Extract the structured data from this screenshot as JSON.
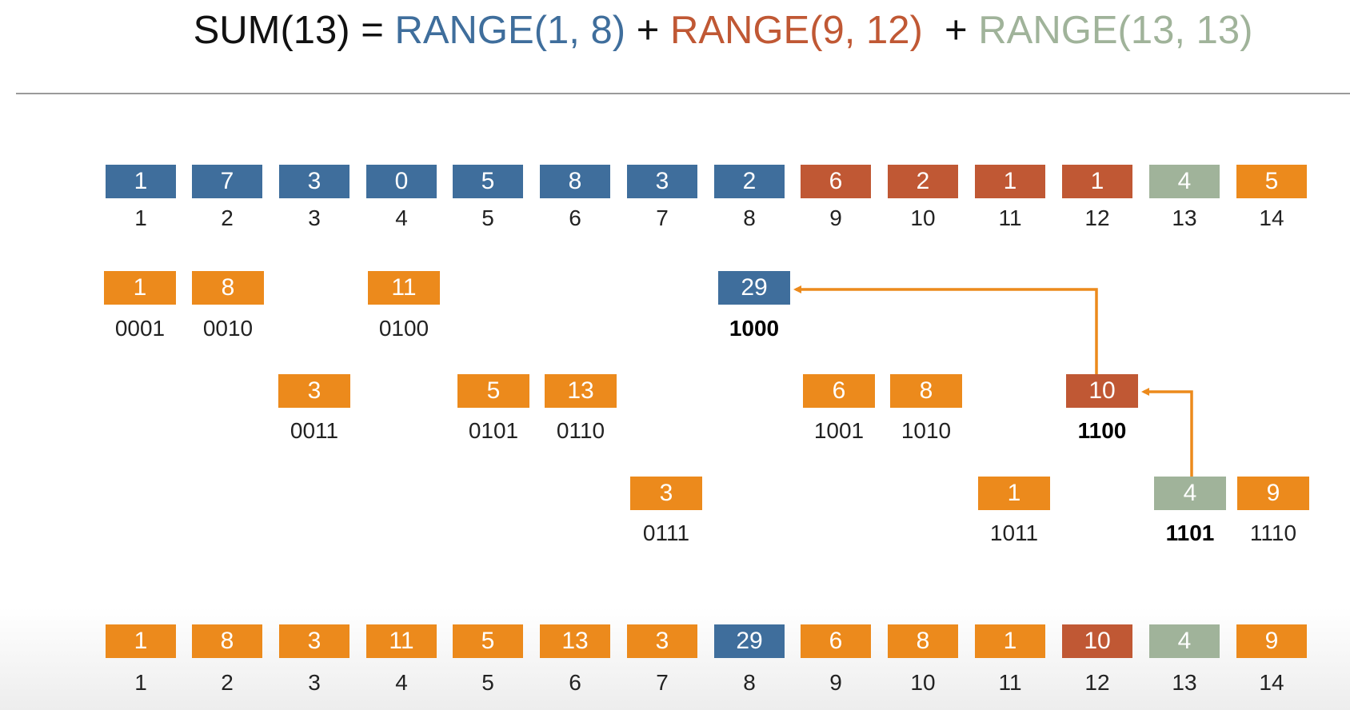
{
  "formula": {
    "sum": "SUM(13) = ",
    "range1": "RANGE(1, 8)",
    "plus1": " + ",
    "range2": "RANGE(9, 12)",
    "plus2": "  + ",
    "range3": "RANGE(13, 13)"
  },
  "colors": {
    "blue": "#3f6e9c",
    "red": "#c05834",
    "gray": "#a0b39a",
    "orange": "#ec8a1c"
  },
  "array": {
    "values": [
      "1",
      "7",
      "3",
      "0",
      "5",
      "8",
      "3",
      "2",
      "6",
      "2",
      "1",
      "1",
      "4",
      "5"
    ],
    "colors": [
      "blue",
      "blue",
      "blue",
      "blue",
      "blue",
      "blue",
      "blue",
      "blue",
      "red",
      "red",
      "red",
      "red",
      "gray",
      "orange"
    ],
    "indices": [
      "1",
      "2",
      "3",
      "4",
      "5",
      "6",
      "7",
      "8",
      "9",
      "10",
      "11",
      "12",
      "13",
      "14"
    ]
  },
  "tree": [
    {
      "value": "1",
      "binary": "0001",
      "color": "orange",
      "bold": false
    },
    {
      "value": "8",
      "binary": "0010",
      "color": "orange",
      "bold": false
    },
    {
      "value": "3",
      "binary": "0011",
      "color": "orange",
      "bold": false
    },
    {
      "value": "11",
      "binary": "0100",
      "color": "orange",
      "bold": false
    },
    {
      "value": "5",
      "binary": "0101",
      "color": "orange",
      "bold": false
    },
    {
      "value": "13",
      "binary": "0110",
      "color": "orange",
      "bold": false
    },
    {
      "value": "3",
      "binary": "0111",
      "color": "orange",
      "bold": false
    },
    {
      "value": "29",
      "binary": "1000",
      "color": "blue",
      "bold": true
    },
    {
      "value": "6",
      "binary": "1001",
      "color": "orange",
      "bold": false
    },
    {
      "value": "8",
      "binary": "1010",
      "color": "orange",
      "bold": false
    },
    {
      "value": "1",
      "binary": "1011",
      "color": "orange",
      "bold": false
    },
    {
      "value": "10",
      "binary": "1100",
      "color": "red",
      "bold": true
    },
    {
      "value": "4",
      "binary": "1101",
      "color": "gray",
      "bold": true
    },
    {
      "value": "9",
      "binary": "1110",
      "color": "orange",
      "bold": false
    }
  ],
  "fenwick": {
    "values": [
      "1",
      "8",
      "3",
      "11",
      "5",
      "13",
      "3",
      "29",
      "6",
      "8",
      "1",
      "10",
      "4",
      "9"
    ],
    "colors": [
      "orange",
      "orange",
      "orange",
      "orange",
      "orange",
      "orange",
      "orange",
      "blue",
      "orange",
      "orange",
      "orange",
      "red",
      "gray",
      "orange"
    ],
    "indices": [
      "1",
      "2",
      "3",
      "4",
      "5",
      "6",
      "7",
      "8",
      "9",
      "10",
      "11",
      "12",
      "13",
      "14"
    ]
  }
}
